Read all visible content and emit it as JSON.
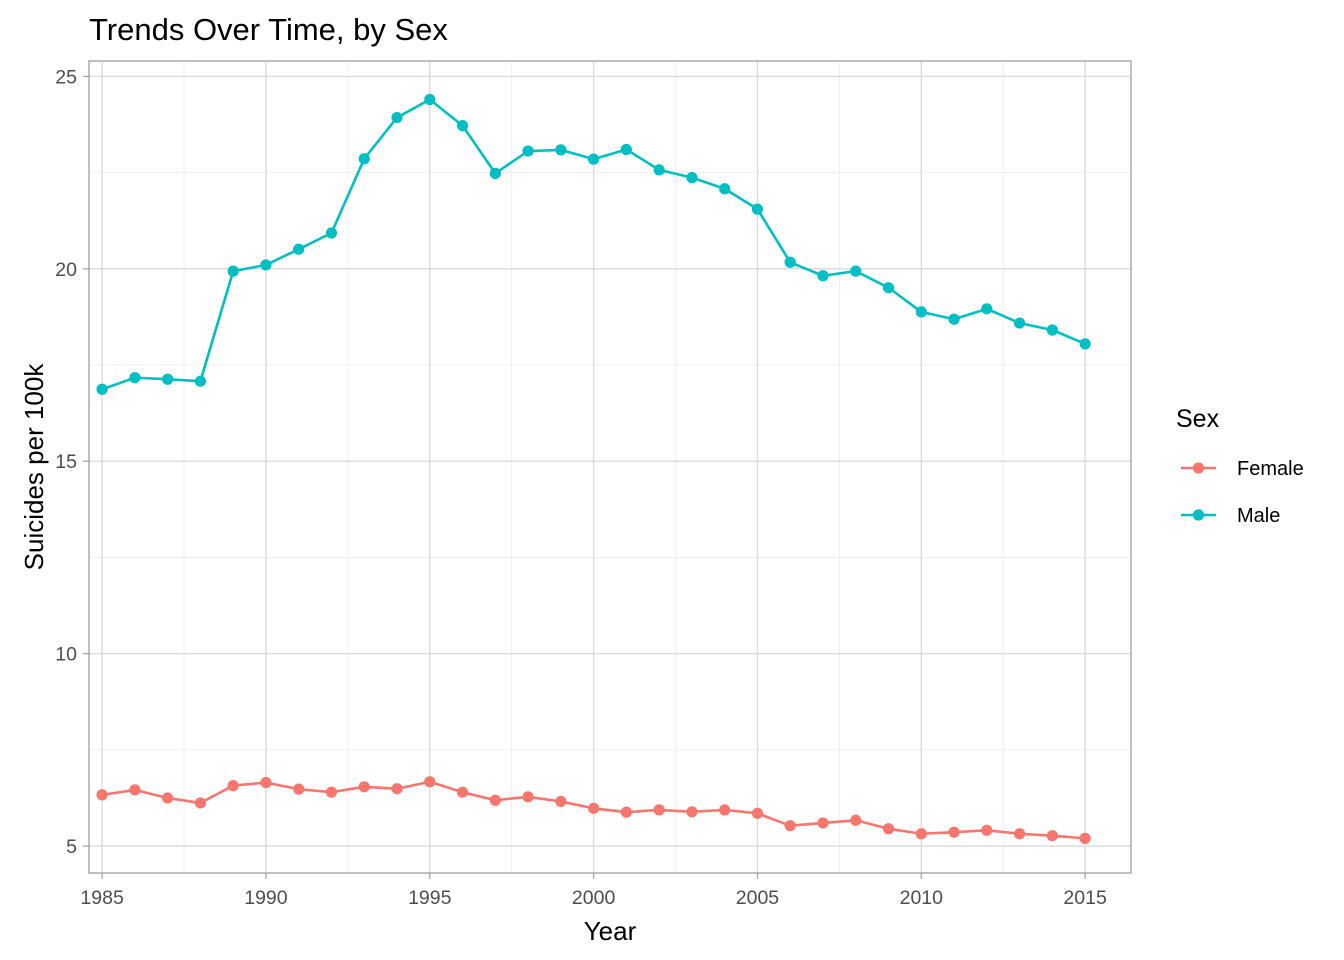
{
  "chart_data": {
    "type": "line",
    "title": "Trends Over Time, by Sex",
    "xlabel": "Year",
    "ylabel": "Suicides per 100k",
    "x": [
      1985,
      1986,
      1987,
      1988,
      1989,
      1990,
      1991,
      1992,
      1993,
      1994,
      1995,
      1996,
      1997,
      1998,
      1999,
      2000,
      2001,
      2002,
      2003,
      2004,
      2005,
      2006,
      2007,
      2008,
      2009,
      2010,
      2011,
      2012,
      2013,
      2014,
      2015
    ],
    "xlim": [
      1984.6,
      2016.4
    ],
    "ylim": [
      4.3,
      25.4
    ],
    "x_ticks": [
      1985,
      1990,
      1995,
      2000,
      2005,
      2010,
      2015
    ],
    "y_ticks": [
      5,
      10,
      15,
      20,
      25
    ],
    "grid": true,
    "markers": true,
    "legend": {
      "title": "Sex",
      "placement": "right"
    },
    "series": [
      {
        "name": "Female",
        "color": "#F8766D",
        "values": [
          6.33,
          6.46,
          6.25,
          6.12,
          6.57,
          6.65,
          6.48,
          6.4,
          6.54,
          6.49,
          6.67,
          6.4,
          6.19,
          6.28,
          6.16,
          5.98,
          5.88,
          5.94,
          5.89,
          5.94,
          5.85,
          5.53,
          5.6,
          5.67,
          5.45,
          5.32,
          5.36,
          5.41,
          5.32,
          5.27,
          5.2
        ]
      },
      {
        "name": "Male",
        "color": "#00BFC4",
        "values": [
          16.87,
          17.17,
          17.13,
          17.08,
          19.94,
          20.1,
          20.51,
          20.93,
          22.86,
          23.93,
          24.4,
          23.72,
          22.48,
          23.06,
          23.09,
          22.85,
          23.1,
          22.57,
          22.37,
          22.08,
          21.55,
          20.17,
          19.82,
          19.94,
          19.51,
          18.88,
          18.69,
          18.96,
          18.59,
          18.41,
          18.05
        ]
      }
    ]
  }
}
